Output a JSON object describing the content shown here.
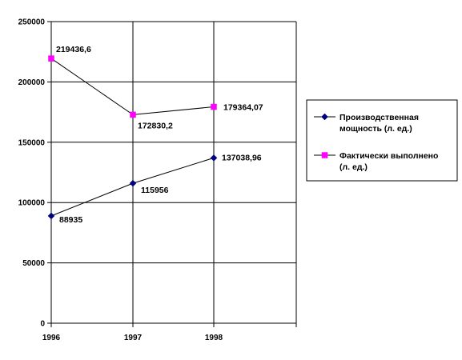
{
  "chart_data": {
    "type": "line",
    "categories": [
      "1996",
      "1997",
      "1998"
    ],
    "ylim": [
      0,
      250000
    ],
    "yticks": [
      0,
      50000,
      100000,
      150000,
      200000,
      250000
    ],
    "ytick_labels": [
      "0",
      "50000",
      "100000",
      "150000",
      "200000",
      "250000"
    ],
    "grid": "vertical and horizontal major gridlines",
    "legend_position": "right",
    "series": [
      {
        "name": "Производственная мощность (л. ед.)",
        "legend_lines": [
          "Производственная",
          "мощность (л. ед.)"
        ],
        "values": [
          88935,
          115956,
          137038.96
        ],
        "labels": [
          "88935",
          "115956",
          "137038,96"
        ],
        "color": "#000080",
        "marker": "diamond"
      },
      {
        "name": "Фактически выполнено (л. ед.)",
        "legend_lines": [
          "Фактически выполнено",
          "(л. ед.)"
        ],
        "values": [
          219436.6,
          172830.2,
          179364.07
        ],
        "labels": [
          "219436,6",
          "172830,2",
          "179364,07"
        ],
        "color": "#ff00ff",
        "marker": "square"
      }
    ]
  }
}
